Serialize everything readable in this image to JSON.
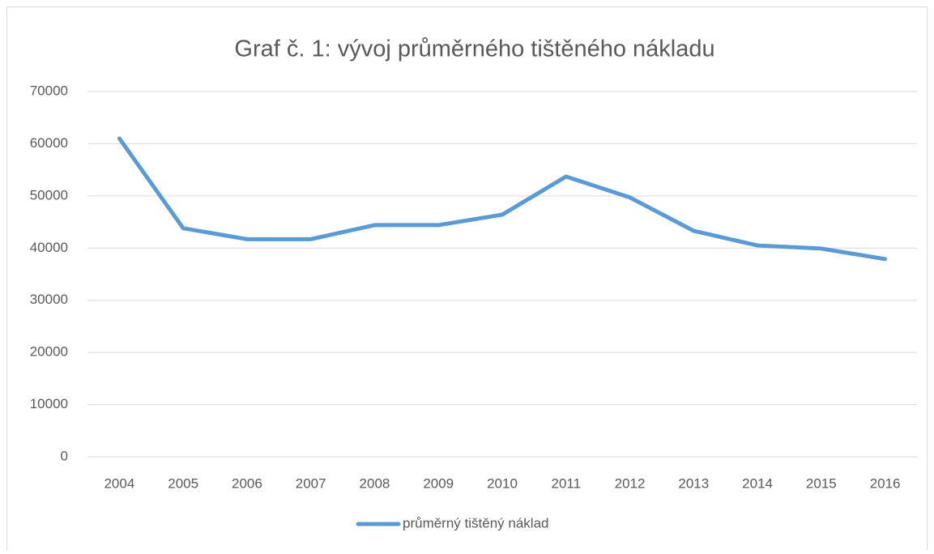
{
  "chart_data": {
    "type": "line",
    "title": "Graf č. 1: vývoj průměrného tištěného nákladu",
    "categories": [
      "2004",
      "2005",
      "2006",
      "2007",
      "2008",
      "2009",
      "2010",
      "2011",
      "2012",
      "2013",
      "2014",
      "2015",
      "2016"
    ],
    "series": [
      {
        "name": "průměrný tištěný náklad",
        "color": "#5b9bd5",
        "values": [
          61000,
          43800,
          41700,
          41700,
          44400,
          44400,
          46400,
          53700,
          49700,
          43300,
          40500,
          39900,
          37900
        ]
      }
    ],
    "ylim": [
      0,
      70000
    ],
    "yticks": [
      0,
      10000,
      20000,
      30000,
      40000,
      50000,
      60000,
      70000
    ],
    "grid": true,
    "legend": "bottom"
  }
}
